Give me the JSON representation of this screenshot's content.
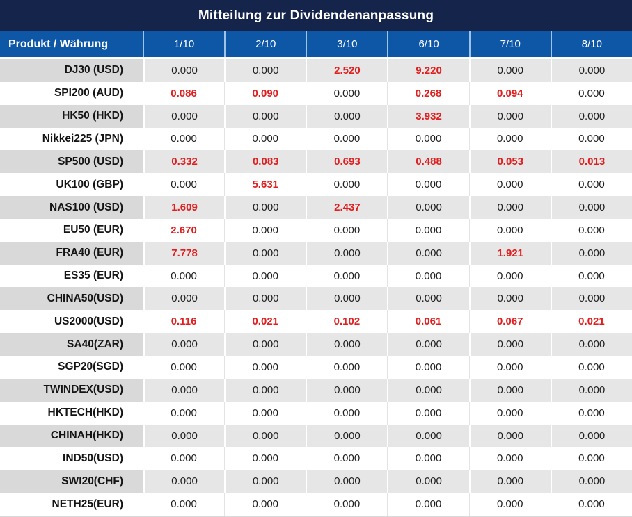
{
  "title": "Mitteilung zur Dividendenanpassung",
  "chart_data": {
    "type": "table",
    "title": "Mitteilung zur Dividendenanpassung",
    "columns": [
      "Produkt / Währung",
      "1/10",
      "2/10",
      "3/10",
      "6/10",
      "7/10",
      "8/10"
    ],
    "rows": [
      {
        "product": "DJ30 (USD)",
        "values": [
          "0.000",
          "0.000",
          "2.520",
          "9.220",
          "0.000",
          "0.000"
        ]
      },
      {
        "product": "SPI200 (AUD)",
        "values": [
          "0.086",
          "0.090",
          "0.000",
          "0.268",
          "0.094",
          "0.000"
        ]
      },
      {
        "product": "HK50 (HKD)",
        "values": [
          "0.000",
          "0.000",
          "0.000",
          "3.932",
          "0.000",
          "0.000"
        ]
      },
      {
        "product": "Nikkei225 (JPN)",
        "values": [
          "0.000",
          "0.000",
          "0.000",
          "0.000",
          "0.000",
          "0.000"
        ]
      },
      {
        "product": "SP500 (USD)",
        "values": [
          "0.332",
          "0.083",
          "0.693",
          "0.488",
          "0.053",
          "0.013"
        ]
      },
      {
        "product": "UK100 (GBP)",
        "values": [
          "0.000",
          "5.631",
          "0.000",
          "0.000",
          "0.000",
          "0.000"
        ]
      },
      {
        "product": "NAS100 (USD)",
        "values": [
          "1.609",
          "0.000",
          "2.437",
          "0.000",
          "0.000",
          "0.000"
        ]
      },
      {
        "product": "EU50 (EUR)",
        "values": [
          "2.670",
          "0.000",
          "0.000",
          "0.000",
          "0.000",
          "0.000"
        ]
      },
      {
        "product": "FRA40 (EUR)",
        "values": [
          "7.778",
          "0.000",
          "0.000",
          "0.000",
          "1.921",
          "0.000"
        ]
      },
      {
        "product": "ES35 (EUR)",
        "values": [
          "0.000",
          "0.000",
          "0.000",
          "0.000",
          "0.000",
          "0.000"
        ]
      },
      {
        "product": "CHINA50(USD)",
        "values": [
          "0.000",
          "0.000",
          "0.000",
          "0.000",
          "0.000",
          "0.000"
        ]
      },
      {
        "product": "US2000(USD)",
        "values": [
          "0.116",
          "0.021",
          "0.102",
          "0.061",
          "0.067",
          "0.021"
        ]
      },
      {
        "product": "SA40(ZAR)",
        "values": [
          "0.000",
          "0.000",
          "0.000",
          "0.000",
          "0.000",
          "0.000"
        ]
      },
      {
        "product": "SGP20(SGD)",
        "values": [
          "0.000",
          "0.000",
          "0.000",
          "0.000",
          "0.000",
          "0.000"
        ]
      },
      {
        "product": "TWINDEX(USD)",
        "values": [
          "0.000",
          "0.000",
          "0.000",
          "0.000",
          "0.000",
          "0.000"
        ]
      },
      {
        "product": "HKTECH(HKD)",
        "values": [
          "0.000",
          "0.000",
          "0.000",
          "0.000",
          "0.000",
          "0.000"
        ]
      },
      {
        "product": "CHINAH(HKD)",
        "values": [
          "0.000",
          "0.000",
          "0.000",
          "0.000",
          "0.000",
          "0.000"
        ]
      },
      {
        "product": "IND50(USD)",
        "values": [
          "0.000",
          "0.000",
          "0.000",
          "0.000",
          "0.000",
          "0.000"
        ]
      },
      {
        "product": "SWI20(CHF)",
        "values": [
          "0.000",
          "0.000",
          "0.000",
          "0.000",
          "0.000",
          "0.000"
        ]
      },
      {
        "product": "NETH25(EUR)",
        "values": [
          "0.000",
          "0.000",
          "0.000",
          "0.000",
          "0.000",
          "0.000"
        ]
      }
    ],
    "highlight_rule": "non-zero values rendered red bold",
    "zero_value": "0.000"
  },
  "colors": {
    "title_bg": "#15244B",
    "header_bg": "#0E57A7",
    "header_divider": "#9DC3E6",
    "label_gray": "#D9D9D9",
    "cell_gray": "#E7E6E6",
    "red": "#E02020",
    "text": "#1E1E1E"
  }
}
